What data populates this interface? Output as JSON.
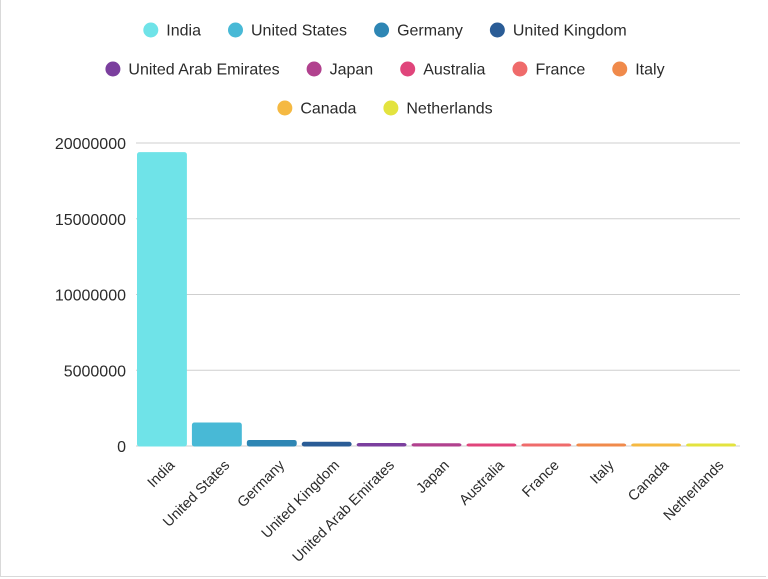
{
  "chart_data": {
    "type": "bar",
    "title": "",
    "xlabel": "",
    "ylabel": "",
    "categories": [
      "India",
      "United States",
      "Germany",
      "United Kingdom",
      "United Arab Emirates",
      "Japan",
      "Australia",
      "France",
      "Italy",
      "Canada",
      "Netherlands"
    ],
    "values": [
      19400000,
      1550000,
      400000,
      280000,
      200000,
      180000,
      160000,
      140000,
      130000,
      120000,
      100000
    ],
    "colors": [
      "#6fe3e8",
      "#48b9d6",
      "#2e86b4",
      "#2a5c96",
      "#7b3f9e",
      "#b1418e",
      "#e0457b",
      "#ef6b6b",
      "#f08a4b",
      "#f5b942",
      "#e3e33f"
    ],
    "ylim": [
      0,
      20000000
    ],
    "yticks": [
      0,
      5000000,
      10000000,
      15000000,
      20000000
    ],
    "ytick_labels": [
      "0",
      "5000000",
      "10000000",
      "15000000",
      "20000000"
    ],
    "grid": true,
    "legend_position": "top-center"
  }
}
